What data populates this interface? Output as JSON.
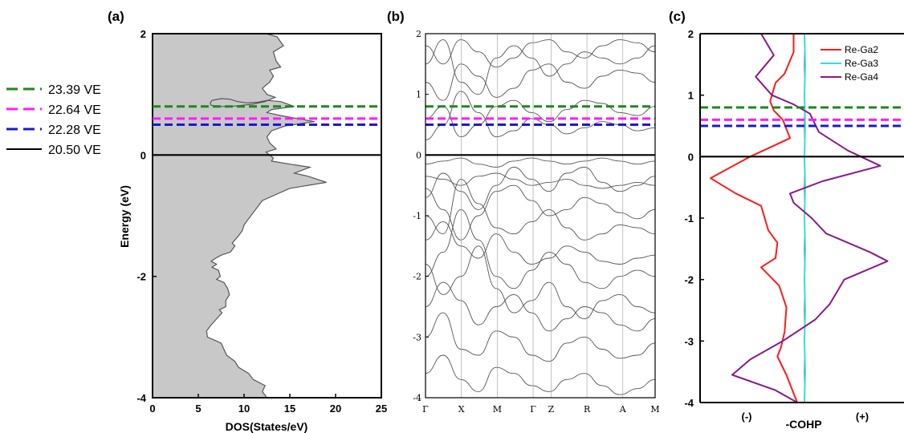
{
  "legend": [
    {
      "label": "23.39 VE",
      "color": "#1a8a1a",
      "style": "dashed",
      "energy": 0.8
    },
    {
      "label": "22.64 VE",
      "color": "#ff1aff",
      "style": "dashed",
      "energy": 0.6
    },
    {
      "label": "22.28 VE",
      "color": "#1a1acc",
      "style": "dashed",
      "energy": 0.5
    },
    {
      "label": "20.50 VE",
      "color": "#000000",
      "style": "solid",
      "energy": 0.0
    }
  ],
  "chart_data": [
    {
      "panel": "(a)",
      "type": "area",
      "xlabel": "DOS(States/eV)",
      "ylabel": "Energy (eV)",
      "xlim": [
        0,
        25
      ],
      "ylim": [
        -4,
        2
      ],
      "xticks": [
        0,
        5,
        10,
        15,
        20,
        25
      ],
      "yticks": [
        -4,
        -2,
        0,
        2
      ],
      "fill_color": "#c8c8c8",
      "x_dos": [
        12.4,
        13.6,
        14.3,
        13.2,
        13.5,
        14.0,
        12.8,
        13.2,
        12.8,
        12.0,
        12.5,
        13.4,
        12.3,
        11.0,
        9.8,
        8.5,
        7.2,
        6.4,
        6.3,
        6.5,
        7.5,
        8.4,
        9.3,
        10.3,
        11.5,
        12.5,
        14.0,
        15.5,
        13.0,
        12.5,
        14.0,
        17.7,
        14.5,
        13.0,
        12.5,
        12.8,
        13.5,
        12.4,
        12.8,
        13.2,
        13.0,
        15.0,
        17.2,
        15.5,
        17.0,
        19.0,
        15.0,
        13.5,
        12.0,
        11.5,
        11.0,
        10.5,
        10.0,
        9.8,
        9.3,
        8.7,
        9.0,
        8.5,
        7.5,
        6.9,
        6.4,
        7.0,
        6.5,
        7.2,
        7.4,
        7.0,
        7.8,
        8.2,
        8.4,
        8.0,
        8.0,
        7.3,
        7.6,
        7.0,
        6.4,
        5.9,
        6.0,
        7.5,
        7.8,
        8.1,
        9.0,
        9.4,
        10.5,
        11.0,
        12.3,
        12.0,
        12.5
      ],
      "y_energy": [
        2.0,
        1.95,
        1.8,
        1.7,
        1.55,
        1.45,
        1.4,
        1.3,
        1.2,
        1.1,
        1.0,
        0.95,
        0.88,
        0.84,
        0.82,
        0.8,
        0.8,
        0.82,
        0.86,
        0.9,
        0.93,
        0.92,
        0.88,
        0.86,
        0.87,
        0.9,
        0.88,
        0.8,
        0.75,
        0.7,
        0.65,
        0.55,
        0.48,
        0.4,
        0.3,
        0.2,
        0.1,
        0.05,
        0.0,
        -0.05,
        -0.1,
        -0.15,
        -0.2,
        -0.3,
        -0.35,
        -0.45,
        -0.55,
        -0.65,
        -0.75,
        -0.85,
        -0.95,
        -1.05,
        -1.15,
        -1.25,
        -1.35,
        -1.45,
        -1.5,
        -1.6,
        -1.65,
        -1.7,
        -1.75,
        -1.8,
        -1.85,
        -1.9,
        -2.0,
        -2.05,
        -2.1,
        -2.2,
        -2.3,
        -2.4,
        -2.5,
        -2.55,
        -2.6,
        -2.7,
        -2.8,
        -2.9,
        -3.0,
        -3.1,
        -3.2,
        -3.3,
        -3.4,
        -3.5,
        -3.6,
        -3.7,
        -3.8,
        -3.9,
        -4.0
      ]
    },
    {
      "panel": "(b)",
      "type": "line",
      "ylim": [
        -4,
        2
      ],
      "yticks": [
        -4,
        -3,
        -2,
        -1,
        0,
        1,
        2
      ],
      "kpoints": [
        "Γ",
        "X",
        "M",
        "Γ",
        "Z",
        "R",
        "A",
        "M"
      ],
      "kpoint_positions": [
        0,
        0.5,
        1.0,
        1.5,
        1.75,
        2.25,
        2.75,
        3.2
      ],
      "band_color": "#555555",
      "bands": [
        [
          -0.35,
          -0.4,
          -0.5,
          -0.35,
          -0.3,
          -0.4,
          -0.5,
          -0.45,
          -0.4,
          -0.5,
          -0.55,
          -0.5,
          -0.45,
          -0.5
        ],
        [
          -0.15,
          -0.1,
          -0.05,
          -0.15,
          -0.2,
          -0.1,
          -0.05,
          -0.1,
          -0.15,
          -0.1,
          -0.05,
          -0.1,
          -0.15,
          -0.1
        ],
        [
          0.25,
          0.5,
          1.05,
          0.7,
          0.3,
          0.4,
          0.6,
          0.5,
          0.35,
          0.45,
          0.55,
          0.5,
          0.4,
          0.45
        ],
        [
          -0.55,
          -0.9,
          -1.4,
          -1.0,
          -0.6,
          -0.5,
          -0.75,
          -1.0,
          -0.9,
          -0.7,
          -0.8,
          -0.95,
          -1.05,
          -0.9
        ],
        [
          -1.0,
          -1.3,
          -0.4,
          -0.8,
          -1.2,
          -1.3,
          -1.1,
          -0.9,
          -1.2,
          -1.4,
          -1.3,
          -1.15,
          -1.2,
          -1.3
        ],
        [
          -1.4,
          -1.1,
          -1.5,
          -1.7,
          -1.3,
          -1.6,
          -1.8,
          -1.7,
          -1.5,
          -1.6,
          -1.75,
          -1.8,
          -1.7,
          -1.65
        ],
        [
          -2.0,
          -1.6,
          -0.9,
          -1.4,
          -2.0,
          -2.2,
          -1.9,
          -1.6,
          -1.8,
          -2.1,
          -2.2,
          -2.0,
          -1.9,
          -2.0
        ],
        [
          -2.5,
          -2.1,
          -2.4,
          -2.8,
          -2.5,
          -2.3,
          -2.6,
          -2.9,
          -2.7,
          -2.5,
          -2.6,
          -2.8,
          -2.9,
          -2.7
        ],
        [
          -3.0,
          -2.6,
          -3.2,
          -3.3,
          -2.9,
          -3.0,
          -3.3,
          -3.4,
          -3.1,
          -3.0,
          -3.2,
          -3.35,
          -3.3,
          -3.1
        ],
        [
          -3.6,
          -3.3,
          -3.7,
          -3.9,
          -3.5,
          -3.6,
          -3.8,
          -3.9,
          -3.7,
          -3.6,
          -3.8,
          -3.95,
          -3.85,
          -3.7
        ],
        [
          1.2,
          0.9,
          1.5,
          1.3,
          0.95,
          1.1,
          1.4,
          1.5,
          1.2,
          1.1,
          1.3,
          1.4,
          1.35,
          1.2
        ],
        [
          1.8,
          1.5,
          1.9,
          1.7,
          1.45,
          1.6,
          1.85,
          1.9,
          1.7,
          1.6,
          1.8,
          1.9,
          1.85,
          1.7
        ],
        [
          0.6,
          0.8,
          0.3,
          0.5,
          0.8,
          0.9,
          0.7,
          0.55,
          0.75,
          0.9,
          0.85,
          0.7,
          0.65,
          0.8
        ],
        [
          -0.7,
          -0.3,
          -0.6,
          -0.9,
          -0.5,
          -0.2,
          -0.4,
          -0.6,
          -0.3,
          -0.2,
          -0.45,
          -0.6,
          -0.5,
          -0.35
        ],
        [
          -1.8,
          -2.3,
          -2.0,
          -1.5,
          -2.2,
          -2.6,
          -2.4,
          -2.1,
          -2.5,
          -2.7,
          -2.4,
          -2.3,
          -2.5,
          -2.6
        ],
        [
          1.5,
          1.9,
          1.2,
          1.0,
          1.6,
          1.8,
          1.6,
          1.3,
          1.5,
          1.7,
          1.6,
          1.5,
          1.6,
          1.8
        ]
      ]
    },
    {
      "panel": "(c)",
      "type": "line",
      "xlabel": "-COHP",
      "x_left_label": "(-)",
      "x_right_label": "(+)",
      "ylim": [
        -4,
        2
      ],
      "yticks": [
        -4,
        -3,
        -2,
        -1,
        0,
        1,
        2
      ],
      "series": [
        {
          "name": "Re-Ga2",
          "color": "#ff1a1a",
          "x": [
            -0.3,
            -0.3,
            -0.55,
            -0.8,
            -0.95,
            -0.85,
            -0.6,
            -0.4,
            -1.5,
            -2.6,
            -1.9,
            -1.2,
            -1.0,
            -0.75,
            -0.8,
            -1.2,
            -0.7,
            -0.5,
            -0.55,
            -0.65,
            -0.75,
            -0.5,
            -0.2
          ],
          "y": [
            2.0,
            1.7,
            1.35,
            1.2,
            0.9,
            0.75,
            0.6,
            0.3,
            0.0,
            -0.35,
            -0.6,
            -0.8,
            -1.2,
            -1.4,
            -1.65,
            -1.8,
            -2.1,
            -2.45,
            -2.85,
            -3.1,
            -3.25,
            -3.55,
            -4.0
          ]
        },
        {
          "name": "Re-Ga3",
          "color": "#33dddd",
          "x": [
            0.0,
            0.02,
            0.0,
            0.02,
            0.0,
            0.02,
            0.0,
            0.02,
            0.0,
            0.02,
            0.0,
            0.02,
            0.0
          ],
          "y": [
            2.0,
            1.5,
            1.0,
            0.5,
            0.0,
            -0.5,
            -1.0,
            -1.5,
            -2.0,
            -2.5,
            -3.0,
            -3.5,
            -4.0
          ]
        },
        {
          "name": "Re-Ga4",
          "color": "#8a1a8a",
          "x": [
            -1.2,
            -0.85,
            -1.35,
            -0.9,
            -0.3,
            0.15,
            0.4,
            1.2,
            2.1,
            0.5,
            -0.4,
            -0.3,
            0.2,
            0.6,
            1.8,
            2.3,
            1.1,
            0.7,
            0.3,
            -0.6,
            -1.5,
            -2.0,
            -0.8,
            -0.2
          ],
          "y": [
            2.0,
            1.65,
            1.3,
            1.0,
            0.85,
            0.7,
            0.4,
            0.1,
            -0.15,
            -0.4,
            -0.6,
            -0.75,
            -1.0,
            -1.25,
            -1.55,
            -1.7,
            -2.0,
            -2.4,
            -2.65,
            -3.0,
            -3.3,
            -3.55,
            -3.8,
            -4.0
          ]
        }
      ]
    }
  ]
}
